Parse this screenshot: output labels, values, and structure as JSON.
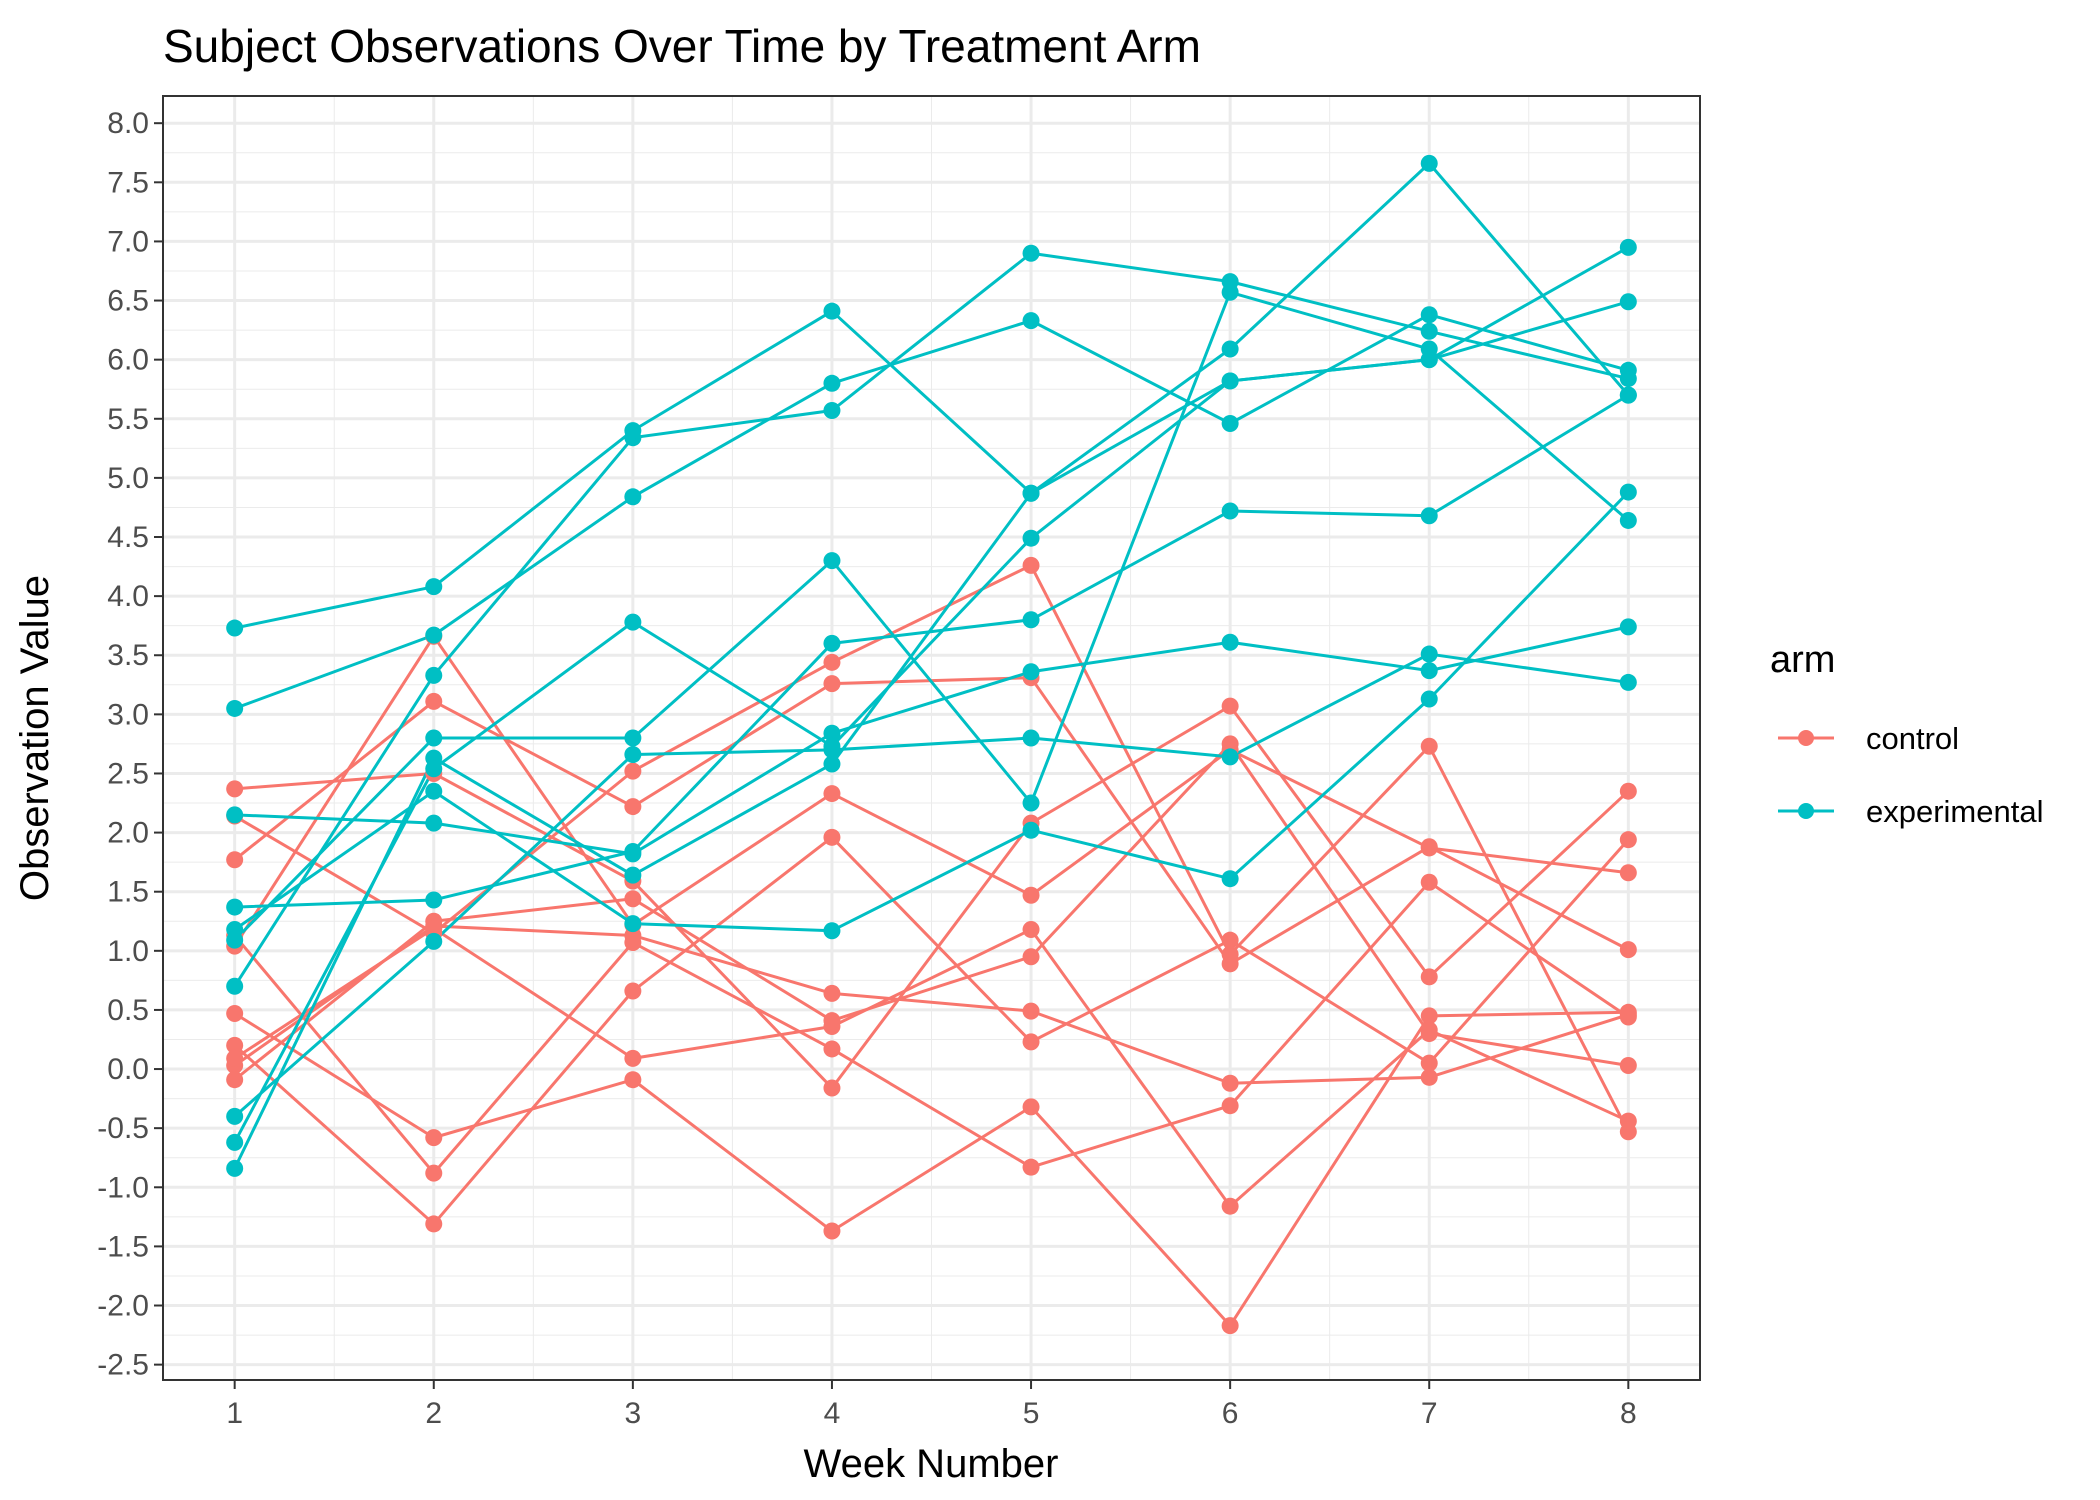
{
  "chart_data": {
    "type": "line",
    "title": "Subject Observations Over Time by Treatment Arm",
    "xlabel": "Week Number",
    "ylabel": "Observation Value",
    "x": [
      1,
      2,
      3,
      4,
      5,
      6,
      7,
      8
    ],
    "xlim": [
      0.64,
      8.36
    ],
    "ylim": [
      -2.63,
      8.23
    ],
    "yticks": [
      "-2.5",
      "-2.0",
      "-1.5",
      "-1.0",
      "-0.5",
      "0.0",
      "0.5",
      "1.0",
      "1.5",
      "2.0",
      "2.5",
      "3.0",
      "3.5",
      "4.0",
      "4.5",
      "5.0",
      "5.5",
      "6.0",
      "6.5",
      "7.0",
      "7.5",
      "8.0"
    ],
    "xticks": [
      "1",
      "2",
      "3",
      "4",
      "5",
      "6",
      "7",
      "8"
    ],
    "grid": true,
    "legend": {
      "title": "arm",
      "position": "right",
      "entries": [
        {
          "label": "control",
          "color": "#F8766D"
        },
        {
          "label": "experimental",
          "color": "#00BFC4"
        }
      ]
    },
    "groups": [
      {
        "arm": "control",
        "color": "#F8766D",
        "subjects": [
          {
            "values": [
              0.2,
              -1.31,
              0.66,
              1.96,
              0.23,
              1.09,
              0.05,
              1.94
            ]
          },
          {
            "values": [
              1.13,
              -0.88,
              1.07,
              0.17,
              -0.83,
              -0.31,
              1.58,
              0.44
            ]
          },
          {
            "values": [
              1.77,
              3.11,
              2.22,
              3.26,
              3.31,
              0.89,
              1.88,
              1.01
            ]
          },
          {
            "values": [
              1.04,
              3.66,
              1.22,
              2.33,
              1.47,
              2.7,
              1.87,
              1.66
            ]
          },
          {
            "values": [
              0.47,
              -0.58,
              -0.09,
              -1.37,
              -0.32,
              -2.17,
              0.45,
              0.48
            ]
          },
          {
            "values": [
              2.37,
              2.5,
              1.59,
              -0.16,
              2.08,
              3.07,
              0.78,
              2.35
            ]
          },
          {
            "values": [
              0.03,
              1.21,
              1.13,
              0.64,
              0.49,
              -0.12,
              -0.07,
              0.46
            ]
          },
          {
            "values": [
              -0.09,
              1.25,
              1.44,
              0.41,
              0.95,
              2.75,
              0.3,
              0.03
            ]
          },
          {
            "values": [
              2.14,
              1.15,
              2.52,
              3.44,
              4.26,
              0.97,
              2.73,
              -0.53
            ]
          },
          {
            "values": [
              0.09,
              1.19,
              0.09,
              0.36,
              1.18,
              -1.16,
              0.33,
              -0.44
            ]
          }
        ]
      },
      {
        "arm": "experimental",
        "color": "#00BFC4",
        "subjects": [
          {
            "values": [
              3.05,
              3.67,
              4.84,
              5.8,
              6.33,
              5.46,
              6.38,
              5.91
            ]
          },
          {
            "values": [
              -0.84,
              2.63,
              1.64,
              2.58,
              4.87,
              5.82,
              6.0,
              6.49
            ]
          },
          {
            "values": [
              2.15,
              2.08,
              1.82,
              2.84,
              3.36,
              3.61,
              3.37,
              3.74
            ]
          },
          {
            "values": [
              -0.62,
              2.54,
              3.78,
              2.73,
              4.49,
              5.82,
              6.0,
              6.95
            ]
          },
          {
            "values": [
              0.7,
              3.33,
              5.34,
              5.57,
              6.9,
              6.66,
              6.24,
              5.84
            ]
          },
          {
            "values": [
              3.73,
              4.08,
              5.4,
              6.41,
              4.87,
              6.09,
              7.66,
              5.7
            ]
          },
          {
            "values": [
              1.18,
              2.35,
              1.23,
              1.17,
              2.02,
              1.61,
              3.13,
              4.88
            ]
          },
          {
            "values": [
              1.37,
              1.43,
              1.84,
              3.6,
              3.8,
              4.72,
              4.68,
              5.7
            ]
          },
          {
            "values": [
              -0.4,
              1.08,
              2.66,
              2.7,
              2.8,
              2.64,
              3.51,
              3.27
            ]
          },
          {
            "values": [
              1.09,
              2.8,
              2.8,
              4.3,
              2.25,
              6.57,
              6.09,
              4.64
            ]
          }
        ]
      }
    ]
  }
}
